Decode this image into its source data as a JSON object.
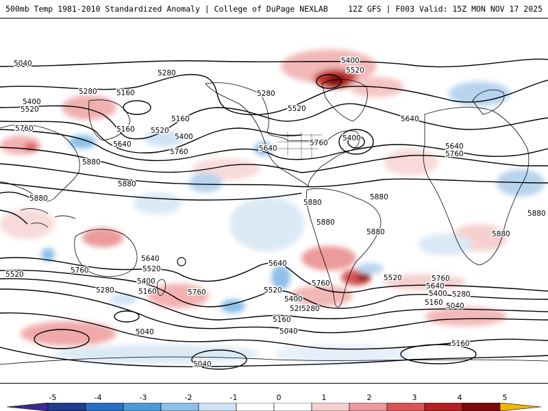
{
  "header": {
    "left_title": "500mb Temp 1981-2010 Standardized Anomaly | College of DuPage NEXLAB",
    "right_title": "12Z GFS | F003 Valid: 15Z MON NOV 17 2025"
  },
  "map": {
    "contour_labels": [
      {
        "text": "5040"
      },
      {
        "text": "5280"
      },
      {
        "text": "5160"
      },
      {
        "text": "5280"
      },
      {
        "text": "5400"
      },
      {
        "text": "5520"
      },
      {
        "text": "5160"
      },
      {
        "text": "5520"
      },
      {
        "text": "5400"
      },
      {
        "text": "5160"
      },
      {
        "text": "5760"
      },
      {
        "text": "5640"
      },
      {
        "text": "5760"
      },
      {
        "text": "5880"
      },
      {
        "text": "5880"
      },
      {
        "text": "5880"
      },
      {
        "text": "5280"
      },
      {
        "text": "5400"
      },
      {
        "text": "5520"
      },
      {
        "text": "5520"
      },
      {
        "text": "5640"
      },
      {
        "text": "5760"
      },
      {
        "text": "5400"
      },
      {
        "text": "5880"
      },
      {
        "text": "5880"
      },
      {
        "text": "5880"
      },
      {
        "text": "5880"
      },
      {
        "text": "5640"
      },
      {
        "text": "5760"
      },
      {
        "text": "5880"
      },
      {
        "text": "5880"
      },
      {
        "text": "5640"
      },
      {
        "text": "5520"
      },
      {
        "text": "5400"
      },
      {
        "text": "5760"
      },
      {
        "text": "5280"
      },
      {
        "text": "5160"
      },
      {
        "text": "5640"
      },
      {
        "text": "5520"
      },
      {
        "text": "5760"
      },
      {
        "text": "5400"
      },
      {
        "text": "5280"
      },
      {
        "text": "5160"
      },
      {
        "text": "5040"
      },
      {
        "text": "5760"
      },
      {
        "text": "5640"
      },
      {
        "text": "5520"
      },
      {
        "text": "5400"
      },
      {
        "text": "5280"
      },
      {
        "text": "5160"
      },
      {
        "text": "5040"
      },
      {
        "text": "5160"
      },
      {
        "text": "5040"
      },
      {
        "text": "5040"
      },
      {
        "text": "5640"
      },
      {
        "text": "5520"
      },
      {
        "text": "5760"
      },
      {
        "text": "5280"
      }
    ]
  },
  "colorbar": {
    "tick_labels": [
      "-5",
      "-4",
      "-3",
      "-2",
      "-1",
      "0",
      "1",
      "2",
      "3",
      "4",
      "5"
    ],
    "colors": [
      "#3b2a8f",
      "#1f3d8c",
      "#2b6fc2",
      "#4c9ad8",
      "#8ec0e8",
      "#cfe2f4",
      "#ffffff",
      "#ffffff",
      "#f6cfcf",
      "#ec9a9a",
      "#d95555",
      "#b51f1f",
      "#7a0c0c",
      "#f5b400"
    ]
  }
}
